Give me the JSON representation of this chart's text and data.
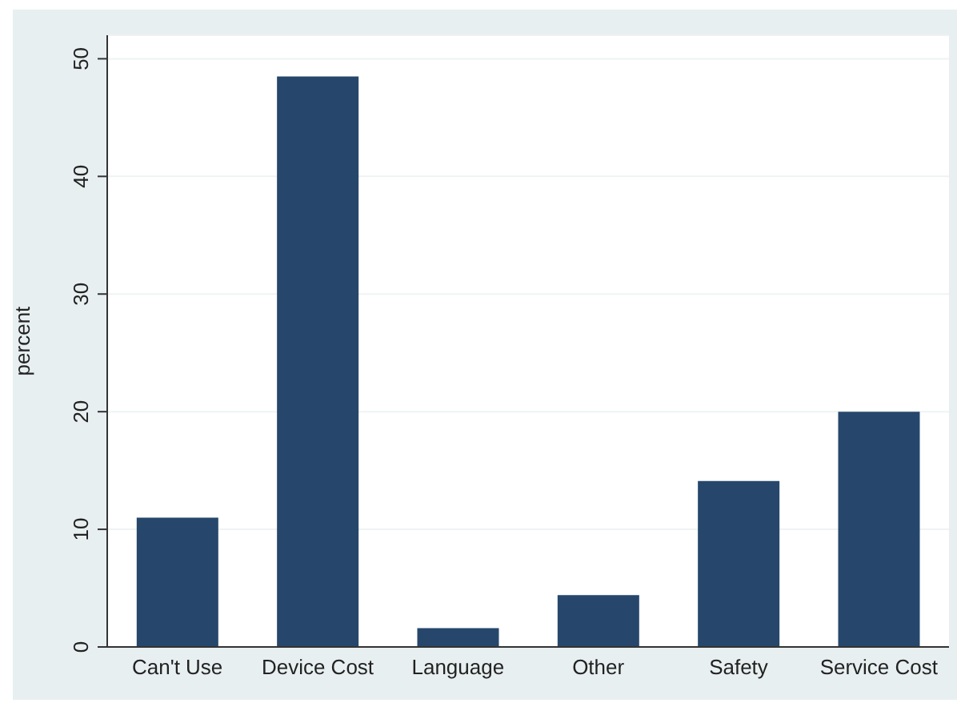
{
  "chart_data": {
    "type": "bar",
    "ylabel": "percent",
    "categories": [
      "Can't Use",
      "Device Cost",
      "Language",
      "Other",
      "Safety",
      "Service Cost"
    ],
    "values": [
      11,
      48.5,
      1.6,
      4.4,
      14.1,
      20
    ],
    "color": "#26476b",
    "ylim": [
      0,
      52
    ],
    "yticks": [
      0,
      10,
      20,
      30,
      40,
      50
    ],
    "grid": "y"
  }
}
